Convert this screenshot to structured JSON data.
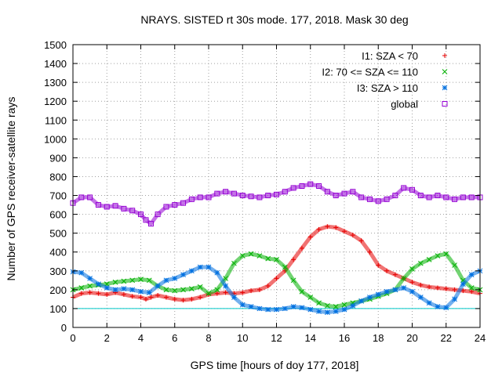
{
  "chart_data": {
    "type": "scatter",
    "title": "NRAYS. SISTED rt 30s mode. 177, 2018. Mask 30 deg",
    "xlabel": "GPS time [hours of doy 177, 2018]",
    "ylabel": "Number of GPS receiver-satellite rays",
    "xlim": [
      0,
      24
    ],
    "ylim": [
      0,
      1500
    ],
    "xticks": [
      0,
      2,
      4,
      6,
      8,
      10,
      12,
      14,
      16,
      18,
      20,
      22,
      24
    ],
    "yticks": [
      0,
      100,
      200,
      300,
      400,
      500,
      600,
      700,
      800,
      900,
      1000,
      1100,
      1200,
      1300,
      1400,
      1500
    ],
    "grid": true,
    "legend_position": "top-right",
    "reference_line": {
      "y": 100,
      "color": "#00c8c8"
    },
    "series": [
      {
        "name": "I1: SZA < 70",
        "marker": "+",
        "color": "#e60000",
        "x": [
          0,
          0.5,
          1,
          1.5,
          2,
          2.5,
          3,
          3.5,
          4,
          4.3,
          4.6,
          5,
          5.5,
          6,
          6.5,
          7,
          7.5,
          8,
          8.5,
          9,
          9.5,
          10,
          10.5,
          11,
          11.5,
          12,
          12.5,
          13,
          13.5,
          14,
          14.5,
          15,
          15.5,
          16,
          16.5,
          17,
          17.5,
          18,
          18.5,
          19,
          19.5,
          20,
          20.5,
          21,
          21.5,
          22,
          22.5,
          23,
          23.5,
          24
        ],
        "y": [
          160,
          180,
          185,
          180,
          175,
          185,
          175,
          165,
          160,
          150,
          160,
          170,
          160,
          150,
          145,
          150,
          160,
          175,
          180,
          185,
          180,
          185,
          195,
          200,
          220,
          260,
          300,
          360,
          420,
          480,
          520,
          535,
          530,
          510,
          490,
          460,
          400,
          330,
          300,
          280,
          260,
          240,
          225,
          215,
          210,
          205,
          200,
          195,
          190,
          180
        ]
      },
      {
        "name": "I2: 70 <= SZA <= 110",
        "marker": "x",
        "color": "#00b000",
        "x": [
          0,
          0.5,
          1,
          1.5,
          2,
          2.5,
          3,
          3.5,
          4,
          4.5,
          5,
          5.5,
          6,
          6.5,
          7,
          7.5,
          8,
          8.5,
          9,
          9.5,
          10,
          10.5,
          11,
          11.5,
          12,
          12.5,
          13,
          13.5,
          14,
          14.5,
          15,
          15.5,
          16,
          16.5,
          17,
          17.5,
          18,
          18.5,
          19,
          19.5,
          20,
          20.5,
          21,
          21.5,
          22,
          22.5,
          23,
          23.5,
          24
        ],
        "y": [
          200,
          210,
          220,
          225,
          230,
          240,
          245,
          250,
          255,
          250,
          220,
          200,
          195,
          200,
          205,
          215,
          180,
          200,
          260,
          340,
          380,
          390,
          380,
          365,
          360,
          320,
          250,
          190,
          160,
          130,
          115,
          110,
          120,
          130,
          140,
          150,
          165,
          180,
          200,
          260,
          310,
          340,
          360,
          380,
          390,
          330,
          250,
          210,
          200
        ]
      },
      {
        "name": "I3: SZA > 110",
        "marker": "*",
        "color": "#0070e0",
        "x": [
          0,
          0.5,
          1,
          1.5,
          2,
          2.5,
          3,
          3.5,
          4,
          4.5,
          5,
          5.5,
          6,
          6.5,
          7,
          7.5,
          8,
          8.5,
          9,
          9.5,
          10,
          10.5,
          11,
          11.5,
          12,
          12.5,
          13,
          13.5,
          14,
          14.5,
          15,
          15.5,
          16,
          16.5,
          17,
          17.5,
          18,
          18.5,
          19,
          19.5,
          20,
          20.5,
          21,
          21.5,
          22,
          22.5,
          23,
          23.5,
          24
        ],
        "y": [
          295,
          290,
          260,
          230,
          210,
          200,
          205,
          200,
          190,
          185,
          220,
          250,
          260,
          280,
          300,
          320,
          320,
          290,
          220,
          160,
          120,
          110,
          100,
          95,
          95,
          100,
          110,
          105,
          95,
          85,
          80,
          85,
          95,
          115,
          140,
          160,
          175,
          190,
          200,
          210,
          190,
          160,
          130,
          110,
          105,
          150,
          230,
          280,
          300
        ]
      },
      {
        "name": "global",
        "marker": "square",
        "color": "#9400d3",
        "x": [
          0,
          0.5,
          1,
          1.5,
          2,
          2.5,
          3,
          3.5,
          4,
          4.3,
          4.6,
          5,
          5.5,
          6,
          6.5,
          7,
          7.5,
          8,
          8.5,
          9,
          9.5,
          10,
          10.5,
          11,
          11.5,
          12,
          12.5,
          13,
          13.5,
          14,
          14.5,
          15,
          15.5,
          16,
          16.5,
          17,
          17.5,
          18,
          18.5,
          19,
          19.5,
          20,
          20.5,
          21,
          21.5,
          22,
          22.5,
          23,
          23.5,
          24
        ],
        "y": [
          660,
          690,
          690,
          650,
          640,
          645,
          630,
          620,
          600,
          570,
          550,
          600,
          640,
          650,
          660,
          680,
          690,
          690,
          710,
          720,
          710,
          700,
          695,
          690,
          700,
          705,
          720,
          740,
          750,
          760,
          750,
          720,
          700,
          710,
          720,
          690,
          680,
          670,
          680,
          700,
          740,
          730,
          700,
          690,
          700,
          690,
          680,
          690,
          690,
          690
        ]
      }
    ]
  }
}
